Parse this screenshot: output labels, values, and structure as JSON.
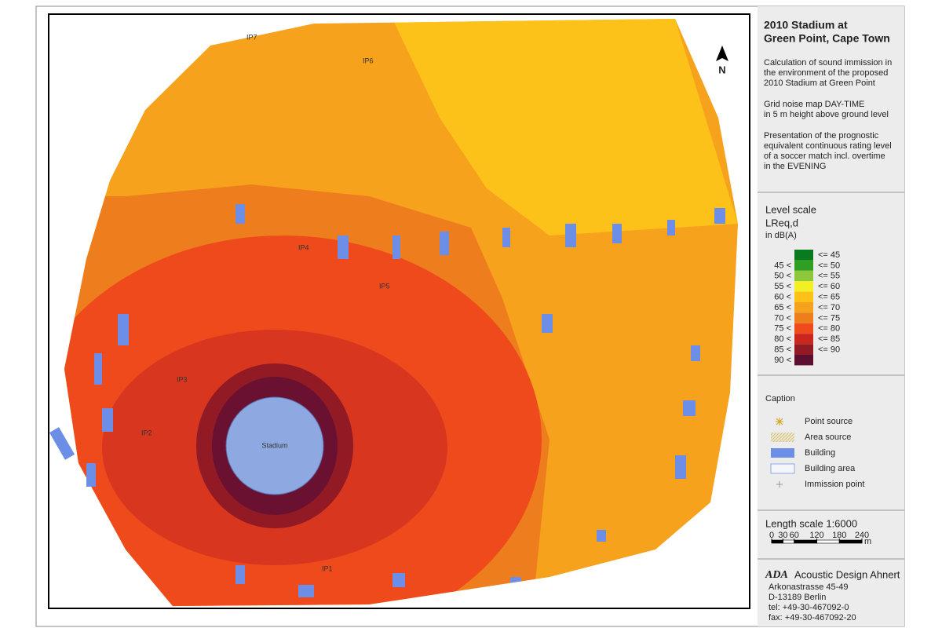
{
  "title": [
    "2010 Stadium at",
    "Green Point, Cape Town"
  ],
  "description": [
    [
      "Calculation of sound immission in",
      "the environment of the proposed",
      "2010 Stadium at Green Point"
    ],
    [
      "Grid noise map DAY-TIME",
      "in 5 m height above ground level"
    ],
    [
      "Presentation of  the prognostic",
      "equivalent continuous rating level",
      "of a soccer match incl. overtime",
      "in the EVENING"
    ]
  ],
  "level_scale": {
    "title": "Level scale",
    "quantity": "LReq,d",
    "unit": "in dB(A)",
    "rows": [
      {
        "to": "<=  45",
        "color": "#0a7a1e"
      },
      {
        "from": "45 <",
        "to": "<=  50",
        "color": "#2f9e22"
      },
      {
        "from": "50 <",
        "to": "<=  55",
        "color": "#8cc83a"
      },
      {
        "from": "55 <",
        "to": "<=  60",
        "color": "#f2ef22"
      },
      {
        "from": "60 <",
        "to": "<=  65",
        "color": "#fcc21a"
      },
      {
        "from": "65 <",
        "to": "<=  70",
        "color": "#f6a21c"
      },
      {
        "from": "70 <",
        "to": "<=  75",
        "color": "#ee7e1d"
      },
      {
        "from": "75 <",
        "to": "<=  80",
        "color": "#ef4a1c"
      },
      {
        "from": "80 <",
        "to": "<=  85",
        "color": "#c9261e"
      },
      {
        "from": "85 <",
        "to": "<=  90",
        "color": "#921a24"
      },
      {
        "from": "90 <",
        "color": "#5c0f30"
      }
    ]
  },
  "caption": {
    "title": "Caption",
    "items": [
      "Point source",
      "Area source",
      "Building",
      "Building area",
      "Immission point"
    ]
  },
  "length_scale": {
    "title": "Length scale 1:6000",
    "ticks": [
      0,
      30,
      60,
      120,
      180,
      240
    ],
    "unit": "m"
  },
  "company": {
    "logo": "ADA",
    "name": "Acoustic Design Ahnert",
    "lines": [
      "Arkonastrasse 45-49",
      "D-13189 Berlin",
      "tel: +49-30-467092-0",
      "fax: +49-30-467092-20"
    ]
  },
  "map": {
    "labels": [
      "IP1",
      "IP2",
      "IP3",
      "IP4",
      "IP5",
      "IP6",
      "IP7"
    ],
    "stadium": "Stadium",
    "north": "N"
  }
}
